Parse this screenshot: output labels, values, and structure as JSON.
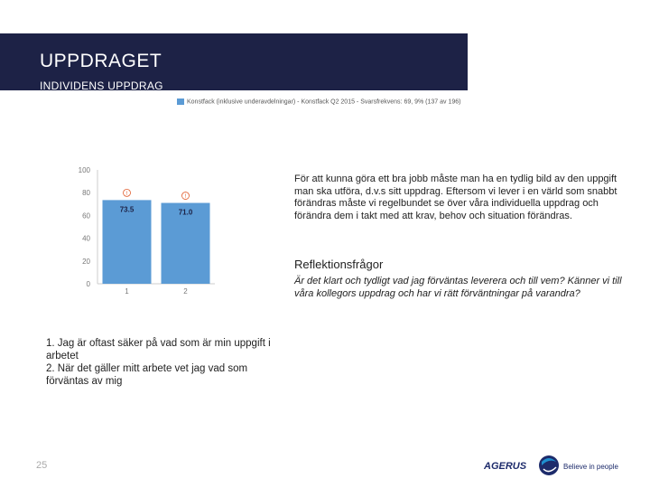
{
  "header": {
    "title": "UPPDRAGET",
    "subtitle": "INDIVIDENS UPPDRAG"
  },
  "legend": {
    "label": "Konstfack (inklusive underavdelningar) - Konstfack Q2 2015 - Svarsfrekvens: 69, 9% (137 av 196)",
    "color": "#5b9bd5"
  },
  "chart_data": {
    "type": "bar",
    "categories": [
      "1",
      "2"
    ],
    "series": [
      {
        "name": "Konstfack (inklusive underavdelningar) - Konstfack Q2 2015",
        "values": [
          73.5,
          71.0
        ]
      }
    ],
    "data_labels": [
      "73.5",
      "71.0"
    ],
    "ylim": [
      0,
      100
    ],
    "yticks": [
      0,
      20,
      40,
      60,
      80,
      100
    ],
    "markers": [
      "!",
      "!"
    ],
    "grid": false,
    "bar_color": "#5b9bd5"
  },
  "text": {
    "paragraph": "För att kunna göra ett bra jobb måste man ha en tydlig bild av den uppgift man ska utföra, d.v.s sitt uppdrag. Eftersom vi lever i en värld som snabbt förändras måste vi regelbundet se över våra individuella uppdrag och förändra dem i takt med att krav, behov och situation förändras.",
    "reflex_title": "Reflektionsfrågor",
    "reflex_text": "Är det klart och tydligt vad jag förväntas leverera och till vem? Känner vi till våra kollegors uppdrag och har vi rätt förväntningar på varandra?"
  },
  "questions": [
    "1. Jag är oftast säker på vad som är min uppgift i arbetet",
    "2. När det gäller mitt arbete vet jag vad som förväntas av mig"
  ],
  "page_number": "25",
  "logo": {
    "brand": "AGERUS",
    "tagline": "Believe in people",
    "colors": {
      "text": "#1d2b6b",
      "accent": "#1f8fd0"
    }
  }
}
